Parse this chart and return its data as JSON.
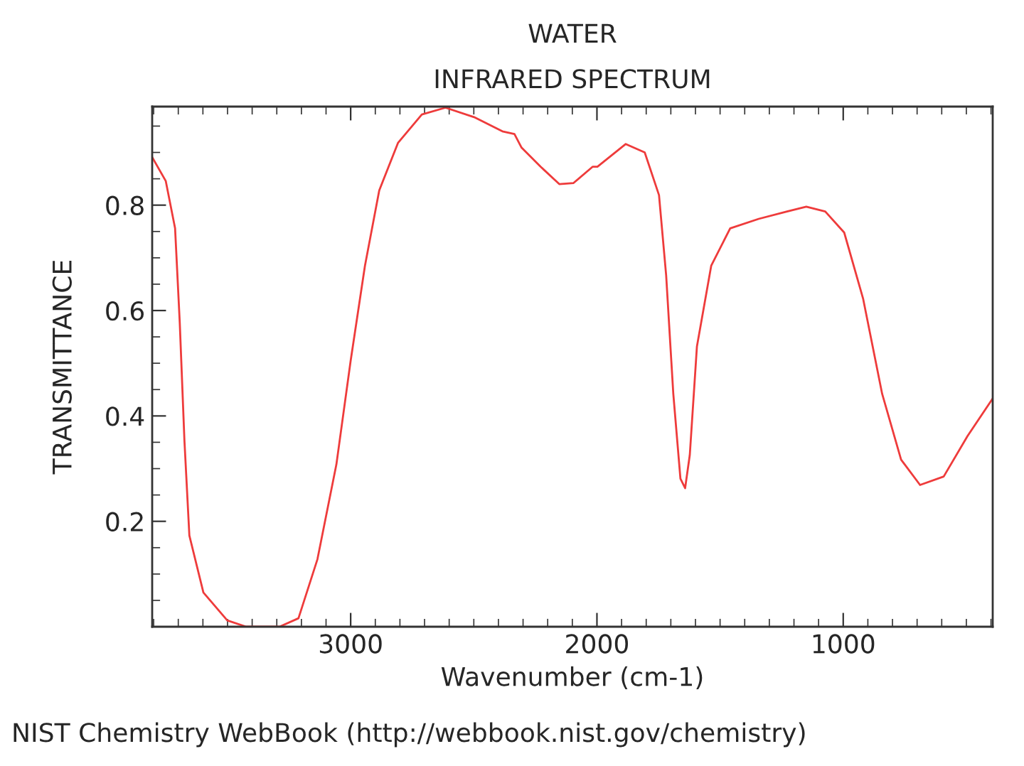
{
  "chart_data": {
    "type": "line",
    "title": "WATER",
    "subtitle": "INFRARED SPECTRUM",
    "xlabel": "Wavenumber (cm-1)",
    "ylabel": "TRANSMITTANCE",
    "annotations": [
      "NIST Chemistry WebBook (http://webbook.nist.gov/chemistry)"
    ],
    "x": [
      3806,
      3751,
      3713,
      3694,
      3675,
      3655,
      3598,
      3501,
      3424,
      3289,
      3212,
      3135,
      3058,
      3000,
      2942,
      2884,
      2808,
      2711,
      2615,
      2499,
      2384,
      2335,
      2306,
      2229,
      2153,
      2095,
      2017,
      1998,
      1883,
      1806,
      1748,
      1719,
      1690,
      1661,
      1642,
      1623,
      1594,
      1536,
      1459,
      1343,
      1228,
      1150,
      1073,
      996,
      919,
      842,
      765,
      688,
      592,
      495,
      393
    ],
    "series": [
      {
        "color": "#ee3b3b",
        "values": [
          0.891,
          0.846,
          0.756,
          0.577,
          0.353,
          0.173,
          0.065,
          0.012,
          0.0,
          0.0,
          0.016,
          0.128,
          0.308,
          0.505,
          0.685,
          0.828,
          0.918,
          0.972,
          0.985,
          0.967,
          0.94,
          0.935,
          0.909,
          0.873,
          0.84,
          0.842,
          0.873,
          0.873,
          0.916,
          0.9,
          0.819,
          0.667,
          0.442,
          0.281,
          0.263,
          0.326,
          0.532,
          0.685,
          0.756,
          0.774,
          0.788,
          0.797,
          0.788,
          0.748,
          0.622,
          0.442,
          0.317,
          0.269,
          0.285,
          0.362,
          0.433
        ]
      }
    ],
    "xlim": [
      3806,
      393
    ],
    "xticks": [
      3000,
      2000,
      1000
    ],
    "ylim": [
      0,
      0.987
    ],
    "yticks": [
      0.2,
      0.4,
      0.6,
      0.8
    ],
    "grid": false,
    "marker": "none",
    "line_style": "solid"
  }
}
